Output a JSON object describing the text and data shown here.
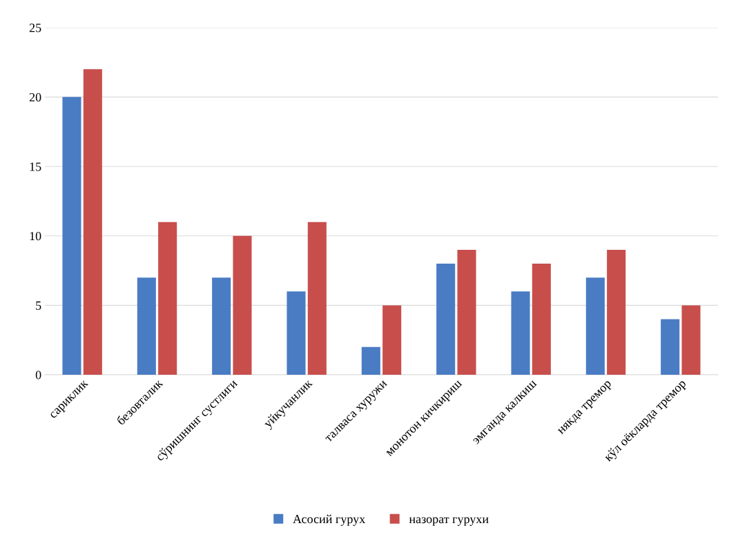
{
  "chart_data": {
    "type": "bar",
    "categories": [
      "сариклик",
      "безовталик",
      "сўришнинг сустлиги",
      "уйкучанлик",
      "талваса хуружи",
      "монотон кичкириш",
      "эмганда калкиш",
      "някда тремор",
      "кўл оёкларда тремор"
    ],
    "series": [
      {
        "name": "Асосий гурух",
        "color": "#4a7cc4",
        "values": [
          20,
          7,
          7,
          6,
          2,
          8,
          6,
          7,
          4
        ]
      },
      {
        "name": "назорат гурухи",
        "color": "#c84e4c",
        "values": [
          22,
          11,
          10,
          11,
          5,
          9,
          8,
          9,
          5
        ]
      }
    ],
    "ylim": [
      0,
      25
    ],
    "yticks": [
      0,
      5,
      10,
      15,
      20,
      25
    ],
    "grid": "y",
    "legend": "bottom"
  }
}
